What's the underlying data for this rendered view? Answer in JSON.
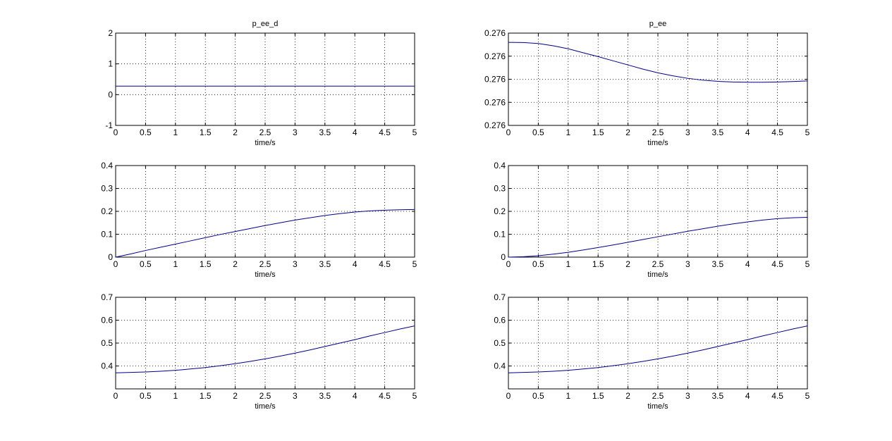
{
  "colors": {
    "background": "#ffffff",
    "axes": "#000000",
    "grid": "#000000",
    "line": "#00008b"
  },
  "chart_data": [
    {
      "type": "line",
      "title": "p_ee_d",
      "xlabel": "time/s",
      "ylabel": "",
      "xlim": [
        0,
        5
      ],
      "ylim": [
        -1,
        2
      ],
      "grid": true,
      "xticks": [
        "0",
        "0.5",
        "1",
        "1.5",
        "2",
        "2.5",
        "3",
        "3.5",
        "4",
        "4.5",
        "5"
      ],
      "yticks": [
        "-1",
        "0",
        "1",
        "2"
      ],
      "x": [
        0,
        0.5,
        1,
        1.5,
        2,
        2.5,
        3,
        3.5,
        4,
        4.5,
        5
      ],
      "y": [
        0.276,
        0.276,
        0.276,
        0.276,
        0.276,
        0.276,
        0.276,
        0.276,
        0.276,
        0.276,
        0.276
      ]
    },
    {
      "type": "line",
      "title": "p_ee",
      "xlabel": "time/s",
      "ylabel": "",
      "xlim": [
        0,
        5
      ],
      "ylim": [
        0.2758,
        0.2762
      ],
      "grid": true,
      "xticks": [
        "0",
        "0.5",
        "1",
        "1.5",
        "2",
        "2.5",
        "3",
        "3.5",
        "4",
        "4.5",
        "5"
      ],
      "yticks": [
        "0.276",
        "0.276",
        "0.276",
        "0.276",
        "0.276"
      ],
      "x": [
        0,
        0.25,
        0.5,
        0.75,
        1,
        1.25,
        1.5,
        1.75,
        2,
        2.25,
        2.5,
        2.75,
        3,
        3.25,
        3.5,
        3.75,
        4,
        4.25,
        4.5,
        4.75,
        5
      ],
      "y": [
        0.27616,
        0.276159,
        0.276155,
        0.276145,
        0.276132,
        0.276115,
        0.276098,
        0.27608,
        0.276062,
        0.276044,
        0.276028,
        0.276015,
        0.276004,
        0.275996,
        0.275991,
        0.275988,
        0.275987,
        0.275987,
        0.275988,
        0.27599,
        0.275993
      ]
    },
    {
      "type": "line",
      "title": "",
      "xlabel": "time/s",
      "ylabel": "",
      "xlim": [
        0,
        5
      ],
      "ylim": [
        0,
        0.4
      ],
      "grid": true,
      "xticks": [
        "0",
        "0.5",
        "1",
        "1.5",
        "2",
        "2.5",
        "3",
        "3.5",
        "4",
        "4.5",
        "5"
      ],
      "yticks": [
        "0",
        "0.1",
        "0.2",
        "0.3",
        "0.4"
      ],
      "x": [
        0,
        0.25,
        0.5,
        0.75,
        1,
        1.25,
        1.5,
        1.75,
        2,
        2.25,
        2.5,
        2.75,
        3,
        3.25,
        3.5,
        3.75,
        4,
        4.25,
        4.5,
        4.75,
        5
      ],
      "y": [
        0.0,
        0.014,
        0.029,
        0.043,
        0.057,
        0.071,
        0.085,
        0.099,
        0.112,
        0.125,
        0.138,
        0.15,
        0.162,
        0.172,
        0.182,
        0.19,
        0.197,
        0.202,
        0.205,
        0.207,
        0.208
      ]
    },
    {
      "type": "line",
      "title": "",
      "xlabel": "time/s",
      "ylabel": "",
      "xlim": [
        0,
        5
      ],
      "ylim": [
        0,
        0.4
      ],
      "grid": true,
      "xticks": [
        "0",
        "0.5",
        "1",
        "1.5",
        "2",
        "2.5",
        "3",
        "3.5",
        "4",
        "4.5",
        "5"
      ],
      "yticks": [
        "0",
        "0.1",
        "0.2",
        "0.3",
        "0.4"
      ],
      "x": [
        0,
        0.25,
        0.5,
        0.75,
        1,
        1.25,
        1.5,
        1.75,
        2,
        2.25,
        2.5,
        2.75,
        3,
        3.25,
        3.5,
        3.75,
        4,
        4.25,
        4.5,
        4.75,
        5
      ],
      "y": [
        0.0,
        0.002,
        0.006,
        0.013,
        0.021,
        0.031,
        0.042,
        0.053,
        0.065,
        0.077,
        0.089,
        0.101,
        0.113,
        0.124,
        0.135,
        0.145,
        0.154,
        0.162,
        0.168,
        0.172,
        0.174
      ]
    },
    {
      "type": "line",
      "title": "",
      "xlabel": "time/s",
      "ylabel": "",
      "xlim": [
        0,
        5
      ],
      "ylim": [
        0.3,
        0.7
      ],
      "grid": true,
      "xticks": [
        "0",
        "0.5",
        "1",
        "1.5",
        "2",
        "2.5",
        "3",
        "3.5",
        "4",
        "4.5",
        "5"
      ],
      "yticks": [
        "0.4",
        "0.5",
        "0.6",
        "0.7"
      ],
      "x": [
        0,
        0.25,
        0.5,
        0.75,
        1,
        1.25,
        1.5,
        1.75,
        2,
        2.25,
        2.5,
        2.75,
        3,
        3.25,
        3.5,
        3.75,
        4,
        4.25,
        4.5,
        4.75,
        5
      ],
      "y": [
        0.37,
        0.372,
        0.374,
        0.377,
        0.381,
        0.387,
        0.393,
        0.401,
        0.41,
        0.42,
        0.431,
        0.443,
        0.456,
        0.47,
        0.485,
        0.5,
        0.515,
        0.531,
        0.546,
        0.561,
        0.575
      ]
    },
    {
      "type": "line",
      "title": "",
      "xlabel": "time/s",
      "ylabel": "",
      "xlim": [
        0,
        5
      ],
      "ylim": [
        0.3,
        0.7
      ],
      "grid": true,
      "xticks": [
        "0",
        "0.5",
        "1",
        "1.5",
        "2",
        "2.5",
        "3",
        "3.5",
        "4",
        "4.5",
        "5"
      ],
      "yticks": [
        "0.4",
        "0.5",
        "0.6",
        "0.7"
      ],
      "x": [
        0,
        0.25,
        0.5,
        0.75,
        1,
        1.25,
        1.5,
        1.75,
        2,
        2.25,
        2.5,
        2.75,
        3,
        3.25,
        3.5,
        3.75,
        4,
        4.25,
        4.5,
        4.75,
        5
      ],
      "y": [
        0.37,
        0.372,
        0.374,
        0.377,
        0.381,
        0.387,
        0.393,
        0.401,
        0.41,
        0.42,
        0.431,
        0.443,
        0.456,
        0.47,
        0.485,
        0.5,
        0.515,
        0.531,
        0.546,
        0.561,
        0.575
      ]
    }
  ]
}
